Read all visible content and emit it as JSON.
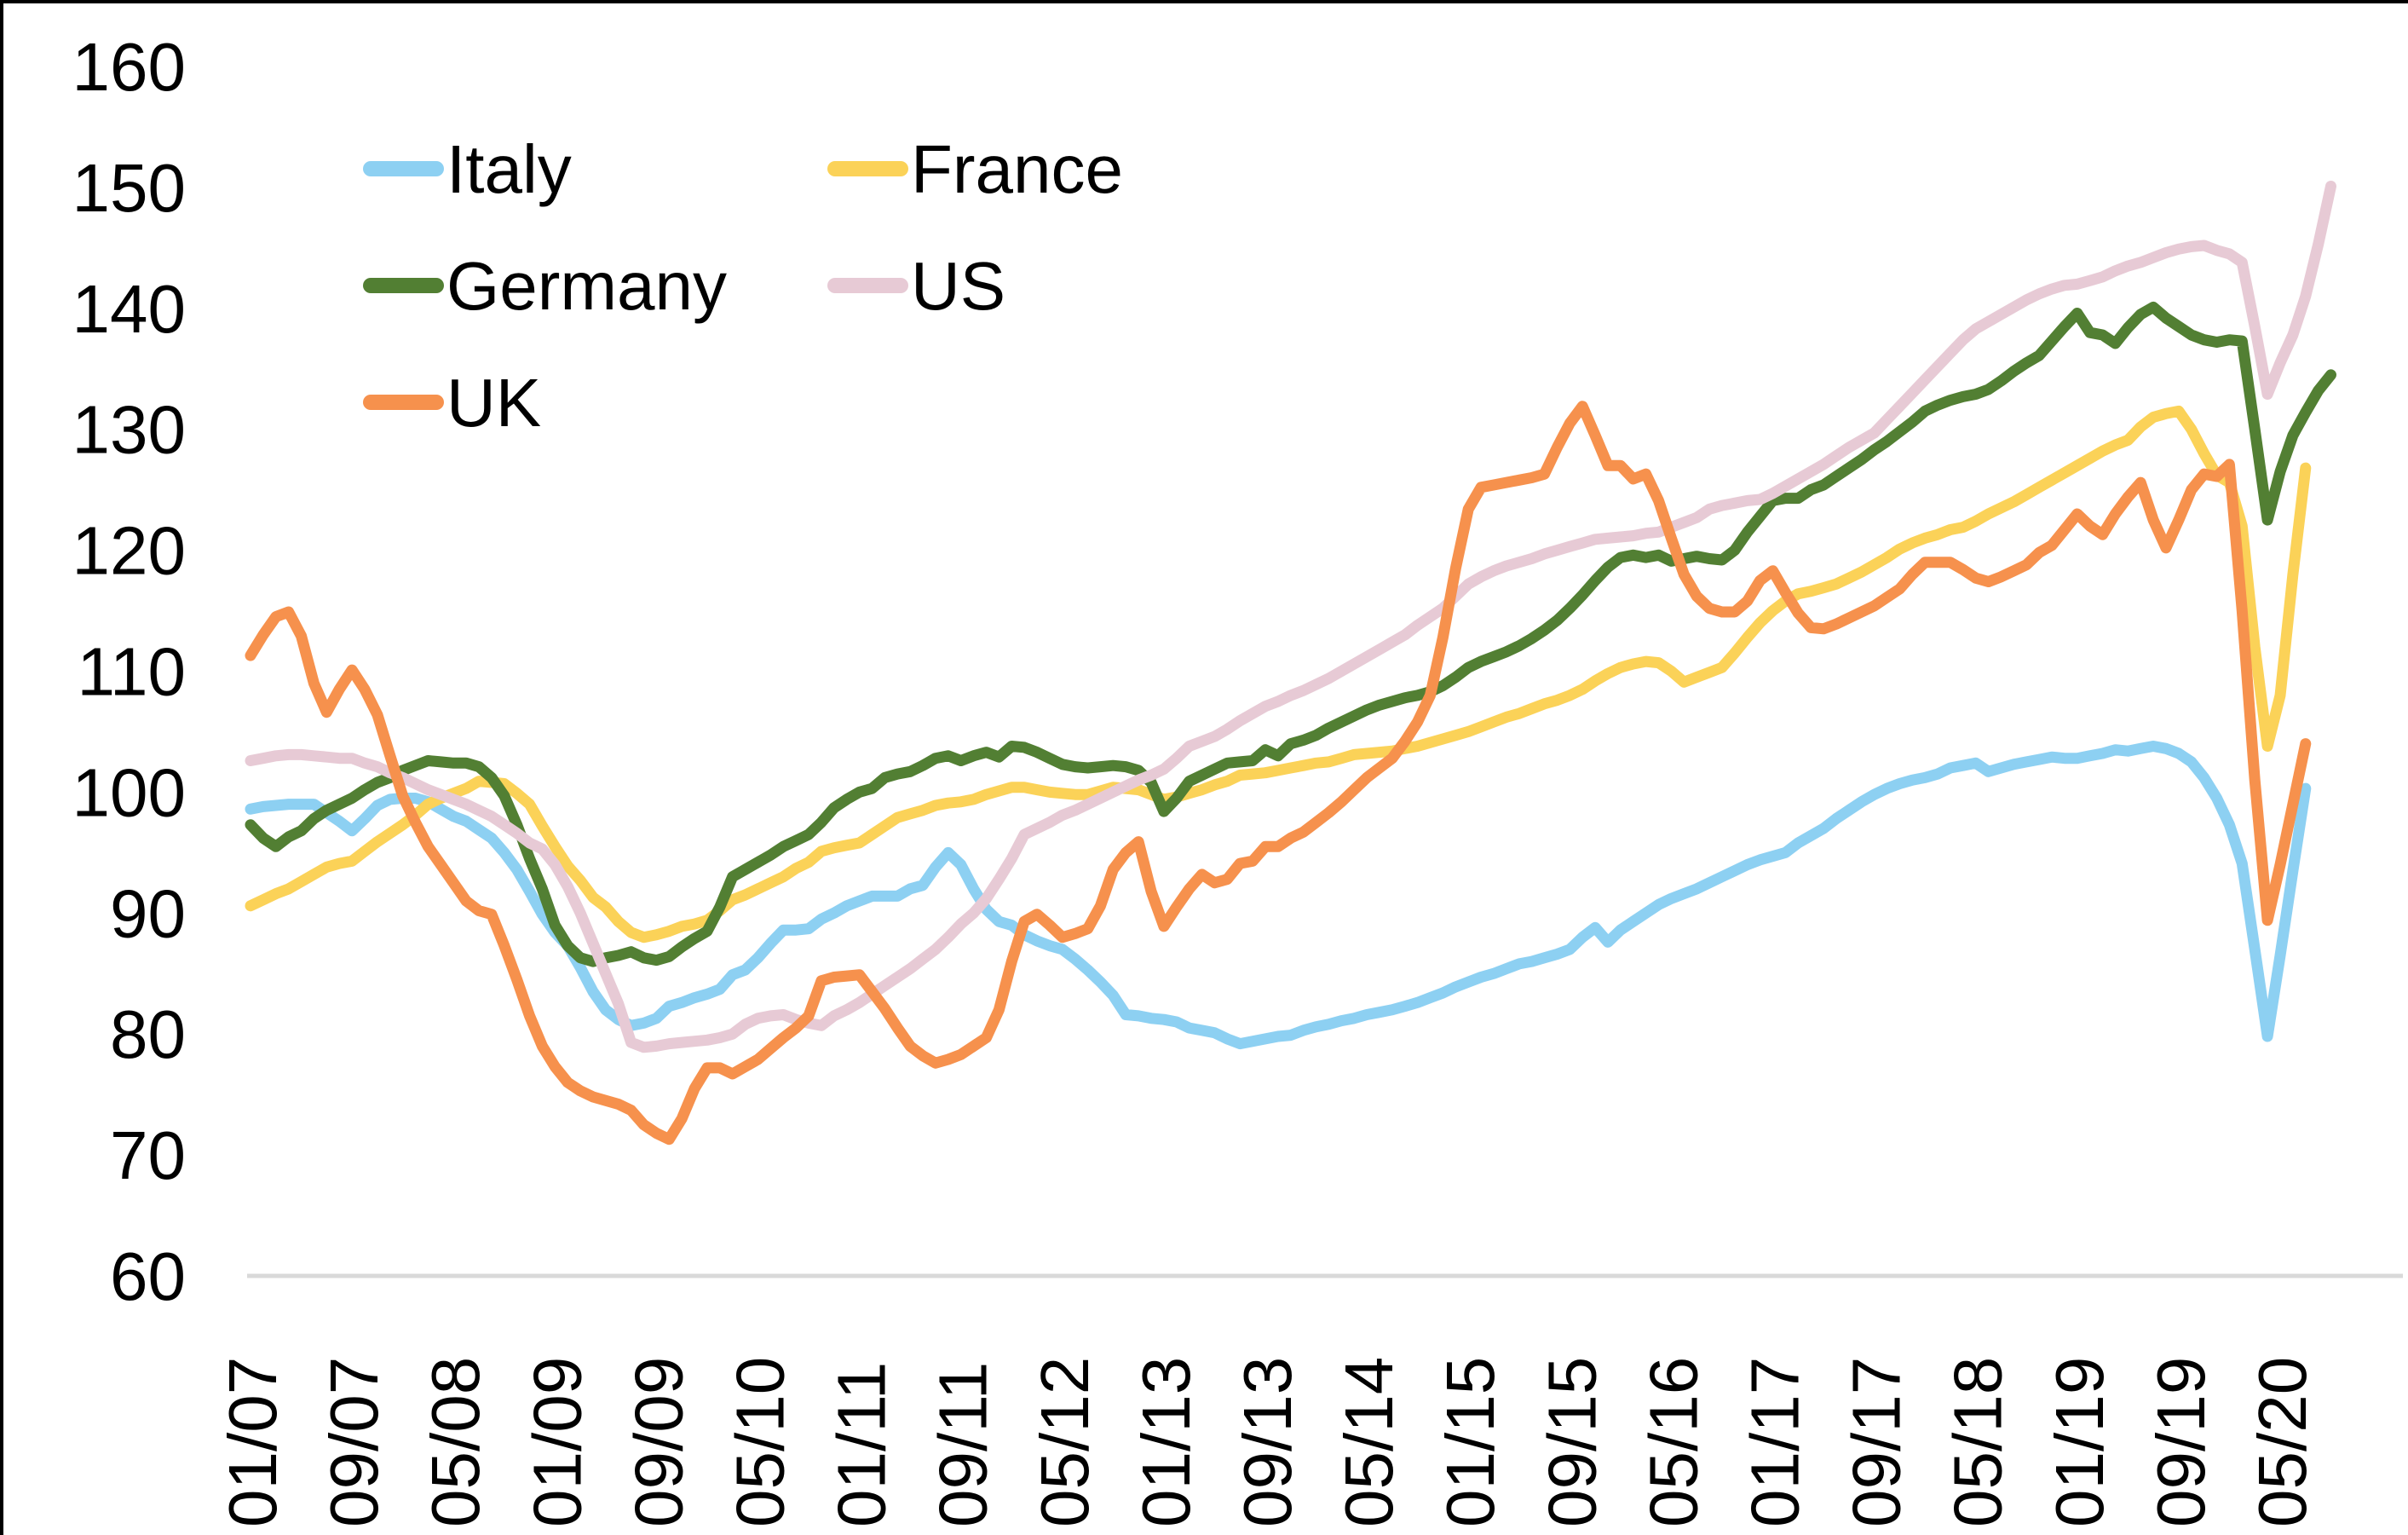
{
  "chart_data": {
    "type": "line",
    "title": "",
    "xlabel": "",
    "ylabel": "",
    "grid": false,
    "legend_position": "top-left-two-columns",
    "x_axis": {
      "start_month": "01/07",
      "frequency": "monthly",
      "tick_every_n_months": 8,
      "labels": [
        "01/07",
        "09/07",
        "05/08",
        "01/09",
        "09/09",
        "05/10",
        "01/11",
        "09/11",
        "05/12",
        "01/13",
        "09/13",
        "05/14",
        "01/15",
        "09/15",
        "05/16",
        "01/17",
        "09/17",
        "05/18",
        "01/19",
        "09/19",
        "05/20"
      ]
    },
    "y_axis": {
      "min": 60,
      "max": 160,
      "tick_step": 10,
      "ticks": [
        160,
        150,
        140,
        130,
        120,
        110,
        100,
        90,
        80,
        70,
        60
      ]
    },
    "axis_line_color": "#d9d9d9",
    "series": [
      {
        "name": "Italy",
        "color": "#8dd0f2",
        "start": "2007-01",
        "values": [
          98.6,
          98.8,
          98.9,
          99.0,
          99.0,
          99.0,
          98.3,
          97.6,
          96.8,
          97.8,
          98.9,
          99.4,
          99.5,
          99.5,
          99.2,
          98.6,
          98.0,
          97.6,
          96.9,
          96.2,
          95.0,
          93.6,
          91.8,
          89.9,
          88.4,
          87.3,
          85.5,
          83.5,
          82.0,
          81.2,
          80.7,
          80.9,
          81.3,
          82.3,
          82.6,
          83.0,
          83.3,
          83.7,
          84.9,
          85.3,
          86.3,
          87.5,
          88.6,
          88.6,
          88.7,
          89.5,
          90.0,
          90.6,
          91.0,
          91.4,
          91.4,
          91.4,
          92.0,
          92.3,
          93.8,
          95.0,
          94.0,
          92.0,
          90.3,
          89.3,
          89.0,
          88.2,
          87.7,
          87.3,
          87.0,
          86.2,
          85.3,
          84.3,
          83.2,
          81.6,
          81.5,
          81.3,
          81.2,
          81.0,
          80.5,
          80.3,
          80.1,
          79.6,
          79.2,
          79.4,
          79.6,
          79.8,
          79.9,
          80.3,
          80.6,
          80.8,
          81.1,
          81.3,
          81.6,
          81.8,
          82.0,
          82.3,
          82.6,
          83.0,
          83.4,
          83.9,
          84.3,
          84.7,
          85.0,
          85.4,
          85.8,
          86.0,
          86.3,
          86.6,
          87.0,
          88.0,
          88.8,
          87.6,
          88.6,
          89.3,
          90.0,
          90.7,
          91.2,
          91.6,
          92.0,
          92.5,
          93.0,
          93.5,
          94.0,
          94.4,
          94.7,
          95.0,
          95.8,
          96.4,
          97.0,
          97.8,
          98.5,
          99.2,
          99.8,
          100.3,
          100.7,
          101.0,
          101.2,
          101.5,
          102.0,
          102.2,
          102.4,
          101.7,
          102.0,
          102.3,
          102.5,
          102.7,
          102.9,
          102.8,
          102.8,
          103.0,
          103.2,
          103.5,
          103.4,
          103.6,
          103.8,
          103.6,
          103.2,
          102.5,
          101.2,
          99.5,
          97.3,
          94.1,
          87.0,
          79.8,
          86.5,
          93.5,
          100.3
        ]
      },
      {
        "name": "France",
        "color": "#fbd258",
        "start": "2007-01",
        "values": [
          90.6,
          91.1,
          91.6,
          92.0,
          92.6,
          93.2,
          93.8,
          94.1,
          94.3,
          95.1,
          95.9,
          96.6,
          97.3,
          98.1,
          99.0,
          99.5,
          99.9,
          100.3,
          100.9,
          100.8,
          100.7,
          99.9,
          99.0,
          97.2,
          95.5,
          93.9,
          92.7,
          91.3,
          90.5,
          89.3,
          88.4,
          88.0,
          88.2,
          88.5,
          88.9,
          89.1,
          89.4,
          90.2,
          91.1,
          91.5,
          92.0,
          92.5,
          93.0,
          93.7,
          94.2,
          95.1,
          95.4,
          95.6,
          95.8,
          96.5,
          97.2,
          97.9,
          98.2,
          98.5,
          98.9,
          99.1,
          99.2,
          99.4,
          99.8,
          100.1,
          100.4,
          100.4,
          100.2,
          100.0,
          99.9,
          99.8,
          99.8,
          100.1,
          100.4,
          100.3,
          100.2,
          99.8,
          99.4,
          99.6,
          99.9,
          100.2,
          100.6,
          100.9,
          101.4,
          101.5,
          101.6,
          101.8,
          102.0,
          102.2,
          102.4,
          102.5,
          102.8,
          103.1,
          103.2,
          103.3,
          103.4,
          103.6,
          103.8,
          104.1,
          104.4,
          104.7,
          105.0,
          105.4,
          105.8,
          106.2,
          106.5,
          106.9,
          107.3,
          107.6,
          108.0,
          108.5,
          109.2,
          109.8,
          110.3,
          110.6,
          110.8,
          110.7,
          110.0,
          109.1,
          109.5,
          109.9,
          110.3,
          111.5,
          112.8,
          114.0,
          115.0,
          115.8,
          116.4,
          116.6,
          116.9,
          117.2,
          117.7,
          118.2,
          118.8,
          119.4,
          120.1,
          120.6,
          121.0,
          121.3,
          121.7,
          121.9,
          122.4,
          123.0,
          123.5,
          124.0,
          124.6,
          125.2,
          125.8,
          126.4,
          127.0,
          127.6,
          128.2,
          128.7,
          129.1,
          130.2,
          131.0,
          131.3,
          131.5,
          130.0,
          128.0,
          126.2,
          125.6,
          122.0,
          112.0,
          103.8,
          108.0,
          118.0,
          126.8
        ]
      },
      {
        "name": "Germany",
        "color": "#527f33",
        "start": "2007-01",
        "values": [
          97.3,
          96.2,
          95.5,
          96.3,
          96.8,
          97.8,
          98.5,
          99.0,
          99.5,
          100.2,
          100.8,
          101.2,
          101.8,
          102.2,
          102.6,
          102.5,
          102.4,
          102.4,
          102.1,
          101.2,
          99.7,
          97.3,
          94.5,
          92.0,
          89.0,
          87.3,
          86.3,
          86.0,
          86.3,
          86.5,
          86.8,
          86.3,
          86.1,
          86.4,
          87.2,
          87.9,
          88.5,
          90.5,
          93.0,
          93.6,
          94.2,
          94.8,
          95.5,
          96.0,
          96.5,
          97.5,
          98.7,
          99.4,
          100.0,
          100.3,
          101.2,
          101.5,
          101.7,
          102.2,
          102.8,
          103.0,
          102.6,
          103.0,
          103.3,
          102.9,
          103.8,
          103.7,
          103.3,
          102.8,
          102.3,
          102.1,
          102.0,
          102.1,
          102.2,
          102.1,
          101.8,
          100.8,
          98.4,
          99.5,
          100.9,
          101.4,
          101.9,
          102.4,
          102.5,
          102.6,
          103.5,
          103.0,
          104.0,
          104.3,
          104.7,
          105.3,
          105.8,
          106.3,
          106.8,
          107.2,
          107.5,
          107.8,
          108.0,
          108.3,
          108.8,
          109.5,
          110.3,
          110.8,
          111.2,
          111.6,
          112.1,
          112.7,
          113.4,
          114.2,
          115.2,
          116.3,
          117.5,
          118.6,
          119.4,
          119.6,
          119.4,
          119.6,
          119.1,
          119.3,
          119.5,
          119.3,
          119.2,
          120.0,
          121.5,
          122.8,
          124.1,
          124.3,
          124.3,
          125.0,
          125.4,
          126.1,
          126.8,
          127.5,
          128.3,
          129.0,
          129.8,
          130.6,
          131.5,
          132.0,
          132.4,
          132.7,
          132.9,
          133.3,
          134.0,
          134.8,
          135.5,
          136.1,
          137.3,
          138.5,
          139.6,
          138.0,
          137.8,
          137.1,
          138.4,
          139.5,
          140.1,
          139.2,
          138.5,
          137.8,
          137.4,
          137.2,
          137.4,
          137.3,
          130.0,
          122.5,
          126.5,
          129.5,
          131.4,
          133.2,
          134.5
        ]
      },
      {
        "name": "US",
        "color": "#e7cad5",
        "start": "2007-01",
        "values": [
          102.6,
          102.8,
          103.0,
          103.1,
          103.1,
          103.0,
          102.9,
          102.8,
          102.8,
          102.4,
          102.1,
          101.6,
          101.2,
          100.7,
          100.2,
          99.8,
          99.4,
          99.0,
          98.5,
          98.0,
          97.3,
          96.6,
          95.8,
          95.3,
          94.0,
          92.2,
          90.0,
          87.5,
          85.0,
          82.5,
          79.3,
          78.9,
          79.0,
          79.2,
          79.3,
          79.4,
          79.5,
          79.7,
          80.0,
          80.8,
          81.3,
          81.5,
          81.6,
          81.2,
          80.9,
          80.7,
          81.5,
          82.0,
          82.6,
          83.3,
          84.0,
          84.7,
          85.4,
          86.2,
          87.0,
          88.0,
          89.1,
          90.0,
          91.2,
          92.8,
          94.5,
          96.5,
          97.0,
          97.5,
          98.1,
          98.5,
          99.0,
          99.5,
          100.0,
          100.5,
          101.0,
          101.4,
          101.9,
          102.8,
          103.8,
          104.2,
          104.6,
          105.2,
          105.9,
          106.5,
          107.1,
          107.5,
          108.0,
          108.4,
          108.9,
          109.4,
          110.0,
          110.6,
          111.2,
          111.8,
          112.4,
          113.0,
          113.8,
          114.5,
          115.2,
          116.2,
          117.2,
          117.8,
          118.3,
          118.7,
          119.0,
          119.3,
          119.7,
          120.0,
          120.3,
          120.6,
          120.9,
          121.0,
          121.1,
          121.2,
          121.4,
          121.5,
          121.9,
          122.3,
          122.7,
          123.4,
          123.7,
          123.9,
          124.1,
          124.2,
          124.7,
          125.3,
          125.9,
          126.5,
          127.1,
          127.8,
          128.5,
          129.1,
          129.7,
          130.8,
          131.9,
          133.0,
          134.1,
          135.2,
          136.3,
          137.4,
          138.3,
          138.9,
          139.5,
          140.1,
          140.7,
          141.2,
          141.6,
          141.9,
          142.0,
          142.3,
          142.6,
          143.1,
          143.5,
          143.8,
          144.2,
          144.6,
          144.9,
          145.1,
          145.2,
          144.8,
          144.5,
          143.8,
          138.5,
          132.9,
          135.5,
          137.8,
          141.0,
          145.3,
          150.1
        ]
      },
      {
        "name": "UK",
        "color": "#f6914d",
        "start": "2007-01",
        "values": [
          111.3,
          113.0,
          114.5,
          114.9,
          112.9,
          109.0,
          106.6,
          108.5,
          110.1,
          108.5,
          106.4,
          103.0,
          99.7,
          97.5,
          95.5,
          94.0,
          92.5,
          91.0,
          90.2,
          89.9,
          87.3,
          84.5,
          81.5,
          79.0,
          77.3,
          76.0,
          75.3,
          74.8,
          74.5,
          74.2,
          73.7,
          72.5,
          71.8,
          71.3,
          73.0,
          75.5,
          77.2,
          77.2,
          76.7,
          77.3,
          77.9,
          78.8,
          79.7,
          80.5,
          81.5,
          84.4,
          84.7,
          84.8,
          84.9,
          83.5,
          82.1,
          80.5,
          79.0,
          78.2,
          77.6,
          77.9,
          78.3,
          79.0,
          79.7,
          82.0,
          86.0,
          89.3,
          89.9,
          89.0,
          88.0,
          88.3,
          88.7,
          90.6,
          93.6,
          95.0,
          95.9,
          91.8,
          88.9,
          90.5,
          92.0,
          93.2,
          92.5,
          92.8,
          94.1,
          94.3,
          95.5,
          95.5,
          96.2,
          96.7,
          97.5,
          98.3,
          99.2,
          100.2,
          101.2,
          102.0,
          102.8,
          104.2,
          105.8,
          108.0,
          112.8,
          118.5,
          123.4,
          125.2,
          125.4,
          125.6,
          125.8,
          126.0,
          126.3,
          128.5,
          130.5,
          131.9,
          129.5,
          127.0,
          127.0,
          125.9,
          126.3,
          124.1,
          121.0,
          118.0,
          116.2,
          115.2,
          114.9,
          114.9,
          115.8,
          117.5,
          118.3,
          116.5,
          114.8,
          113.6,
          113.5,
          113.9,
          114.4,
          114.9,
          115.4,
          116.1,
          116.8,
          118.0,
          119.0,
          119.0,
          119.0,
          118.4,
          117.7,
          117.4,
          117.8,
          118.3,
          118.8,
          119.8,
          120.4,
          121.7,
          123.0,
          122.0,
          121.3,
          123.0,
          124.4,
          125.6,
          122.5,
          120.2,
          122.5,
          125.0,
          126.3,
          126.1,
          127.1,
          115.0,
          101.0,
          89.4,
          94.0,
          99.0,
          104.0
        ]
      }
    ],
    "legend": {
      "rows": [
        [
          "Italy",
          "France"
        ],
        [
          "Germany",
          "US"
        ],
        [
          "UK"
        ]
      ]
    }
  },
  "frame": {
    "border_color": "#000000"
  }
}
